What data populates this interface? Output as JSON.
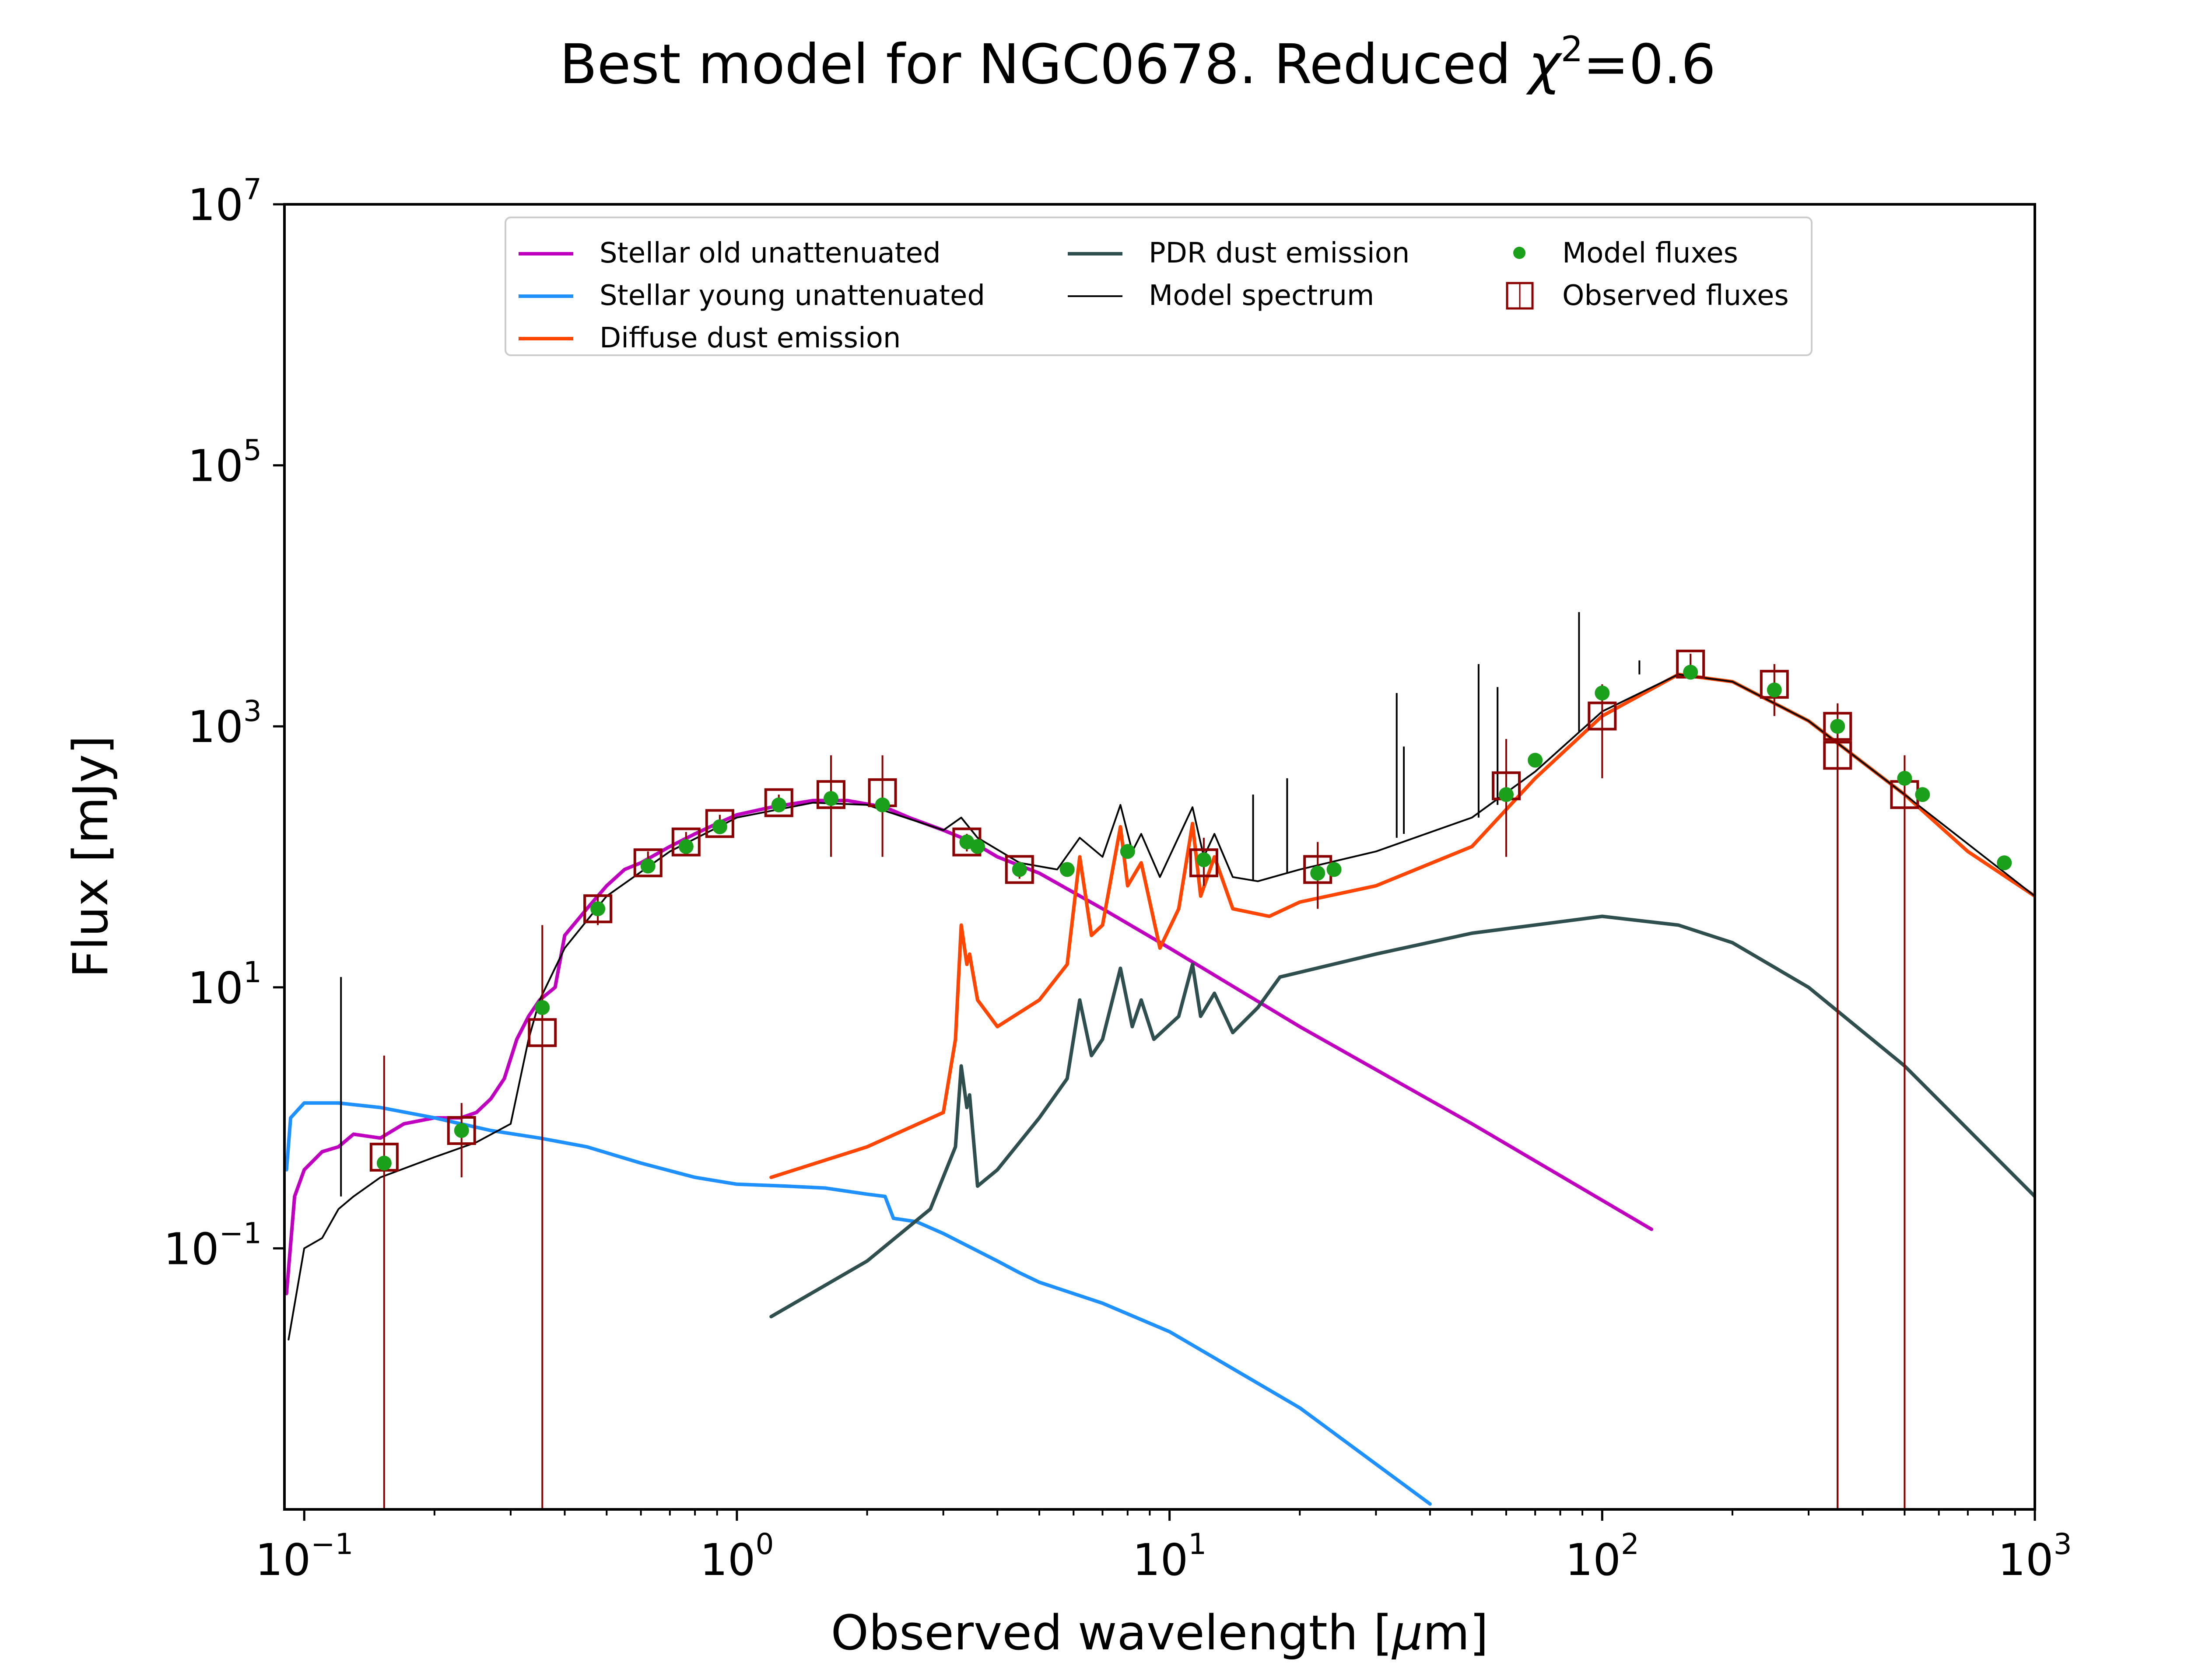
{
  "chart_data": {
    "type": "line",
    "title": "Best model for NGC0678. Reduced χ²=0.6",
    "title_main": "Best model for NGC0678. Reduced ",
    "title_chi": "χ",
    "title_sup": "2",
    "title_tail": "=0.6",
    "xlabel": "Observed wavelength [μm]",
    "xlabel_pre": "Observed wavelength [",
    "xlabel_mu": "μ",
    "xlabel_post": "m]",
    "ylabel": "Flux [mJy]",
    "x_scale": "log",
    "y_scale": "log",
    "xlim": [
      0.09,
      1000
    ],
    "ylim": [
      0.001,
      10000000
    ],
    "x_ticks": [
      {
        "value": 0.1,
        "base": "10",
        "exp": "−1"
      },
      {
        "value": 1,
        "base": "10",
        "exp": "0"
      },
      {
        "value": 10,
        "base": "10",
        "exp": "1"
      },
      {
        "value": 100,
        "base": "10",
        "exp": "2"
      },
      {
        "value": 1000,
        "base": "10",
        "exp": "3"
      }
    ],
    "y_ticks": [
      {
        "value": 0.1,
        "base": "10",
        "exp": "−1"
      },
      {
        "value": 10,
        "base": "10",
        "exp": "1"
      },
      {
        "value": 1000,
        "base": "10",
        "exp": "3"
      },
      {
        "value": 100000,
        "base": "10",
        "exp": "5"
      },
      {
        "value": 10000000,
        "base": "10",
        "exp": "7"
      }
    ],
    "grid": false,
    "legend_position": "upper center",
    "legend": [
      {
        "label": "Stellar old unattenuated",
        "color": "#bf00bf",
        "kind": "line"
      },
      {
        "label": "Stellar young unattenuated",
        "color": "#1e90ff",
        "kind": "line"
      },
      {
        "label": "Diffuse dust emission",
        "color": "#ff4500",
        "kind": "line"
      },
      {
        "label": "PDR dust emission",
        "color": "#2f4f4f",
        "kind": "line"
      },
      {
        "label": "Model spectrum",
        "color": "#000000",
        "kind": "thinline"
      },
      {
        "label": "Model fluxes",
        "color": "#1aa01a",
        "kind": "dot"
      },
      {
        "label": "Observed fluxes",
        "color": "#8b0000",
        "kind": "square"
      }
    ],
    "series": [
      {
        "name": "Stellar old unattenuated",
        "color": "#bf00bf",
        "points": [
          [
            0.091,
            0.045
          ],
          [
            0.095,
            0.25
          ],
          [
            0.1,
            0.4
          ],
          [
            0.11,
            0.55
          ],
          [
            0.12,
            0.6
          ],
          [
            0.13,
            0.75
          ],
          [
            0.15,
            0.7
          ],
          [
            0.17,
            0.9
          ],
          [
            0.2,
            1.0
          ],
          [
            0.23,
            1.0
          ],
          [
            0.25,
            1.1
          ],
          [
            0.27,
            1.4
          ],
          [
            0.29,
            2.0
          ],
          [
            0.31,
            4.0
          ],
          [
            0.33,
            6.0
          ],
          [
            0.35,
            8.0
          ],
          [
            0.38,
            10.0
          ],
          [
            0.4,
            25.0
          ],
          [
            0.45,
            40.0
          ],
          [
            0.5,
            60.0
          ],
          [
            0.55,
            80.0
          ],
          [
            0.6,
            90.0
          ],
          [
            0.7,
            120.0
          ],
          [
            0.8,
            150.0
          ],
          [
            0.9,
            180.0
          ],
          [
            1.0,
            210.0
          ],
          [
            1.2,
            240.0
          ],
          [
            1.5,
            270.0
          ],
          [
            1.8,
            270.0
          ],
          [
            2.2,
            240.0
          ],
          [
            2.5,
            200.0
          ],
          [
            3.0,
            160.0
          ],
          [
            3.5,
            130.0
          ],
          [
            4.0,
            100.0
          ],
          [
            5.0,
            75.0
          ],
          [
            7.0,
            40.0
          ],
          [
            10.0,
            20.0
          ],
          [
            20.0,
            5.0
          ],
          [
            50.0,
            0.9
          ],
          [
            130.0,
            0.14
          ]
        ]
      },
      {
        "name": "Stellar young unattenuated",
        "color": "#1e90ff",
        "points": [
          [
            0.091,
            0.4
          ],
          [
            0.093,
            1.0
          ],
          [
            0.1,
            1.3
          ],
          [
            0.12,
            1.3
          ],
          [
            0.15,
            1.2
          ],
          [
            0.2,
            1.0
          ],
          [
            0.23,
            0.9
          ],
          [
            0.27,
            0.8
          ],
          [
            0.35,
            0.7
          ],
          [
            0.45,
            0.6
          ],
          [
            0.6,
            0.45
          ],
          [
            0.8,
            0.35
          ],
          [
            1.0,
            0.31
          ],
          [
            1.3,
            0.3
          ],
          [
            1.6,
            0.29
          ],
          [
            2.0,
            0.26
          ],
          [
            2.2,
            0.25
          ],
          [
            2.3,
            0.17
          ],
          [
            2.6,
            0.16
          ],
          [
            3.0,
            0.13
          ],
          [
            4.0,
            0.08
          ],
          [
            4.5,
            0.065
          ],
          [
            5.0,
            0.055
          ],
          [
            7.0,
            0.038
          ],
          [
            10.0,
            0.023
          ],
          [
            20.0,
            0.006
          ],
          [
            40.0,
            0.0011
          ]
        ]
      },
      {
        "name": "Diffuse dust emission",
        "color": "#ff4500",
        "points": [
          [
            1.2,
            0.35
          ],
          [
            2.0,
            0.6
          ],
          [
            3.0,
            1.1
          ],
          [
            3.2,
            4.0
          ],
          [
            3.3,
            30.0
          ],
          [
            3.4,
            15.0
          ],
          [
            3.45,
            18.0
          ],
          [
            3.6,
            8.0
          ],
          [
            4.0,
            5.0
          ],
          [
            5.0,
            8.0
          ],
          [
            5.8,
            15.0
          ],
          [
            6.2,
            100.0
          ],
          [
            6.6,
            25.0
          ],
          [
            7.0,
            30.0
          ],
          [
            7.7,
            170.0
          ],
          [
            8.0,
            60.0
          ],
          [
            8.6,
            90.0
          ],
          [
            9.5,
            20.0
          ],
          [
            10.5,
            40.0
          ],
          [
            11.3,
            180.0
          ],
          [
            11.8,
            50.0
          ],
          [
            12.7,
            100.0
          ],
          [
            14.0,
            40.0
          ],
          [
            17.0,
            35.0
          ],
          [
            20.0,
            45.0
          ],
          [
            30.0,
            60.0
          ],
          [
            50.0,
            120.0
          ],
          [
            70.0,
            400.0
          ],
          [
            100.0,
            1200.0
          ],
          [
            150.0,
            2500.0
          ],
          [
            200.0,
            2200.0
          ],
          [
            300.0,
            1100.0
          ],
          [
            500.0,
            300.0
          ],
          [
            700.0,
            110.0
          ],
          [
            1000.0,
            50.0
          ]
        ]
      },
      {
        "name": "PDR dust emission",
        "color": "#2f4f4f",
        "points": [
          [
            1.2,
            0.03
          ],
          [
            2.0,
            0.08
          ],
          [
            2.8,
            0.2
          ],
          [
            3.2,
            0.6
          ],
          [
            3.3,
            2.5
          ],
          [
            3.4,
            1.2
          ],
          [
            3.45,
            1.5
          ],
          [
            3.6,
            0.3
          ],
          [
            4.0,
            0.4
          ],
          [
            5.0,
            1.0
          ],
          [
            5.8,
            2.0
          ],
          [
            6.2,
            8.0
          ],
          [
            6.6,
            3.0
          ],
          [
            7.0,
            4.0
          ],
          [
            7.7,
            14.0
          ],
          [
            8.2,
            5.0
          ],
          [
            8.6,
            8.0
          ],
          [
            9.2,
            4.0
          ],
          [
            10.5,
            6.0
          ],
          [
            11.3,
            15.0
          ],
          [
            11.8,
            6.0
          ],
          [
            12.7,
            9.0
          ],
          [
            14.0,
            4.5
          ],
          [
            16.0,
            7.0
          ],
          [
            18.0,
            12.0
          ],
          [
            30.0,
            18.0
          ],
          [
            50.0,
            26.0
          ],
          [
            100.0,
            35.0
          ],
          [
            150.0,
            30.0
          ],
          [
            200.0,
            22.0
          ],
          [
            300.0,
            10.0
          ],
          [
            500.0,
            2.5
          ],
          [
            1000.0,
            0.25
          ]
        ]
      },
      {
        "name": "Model spectrum",
        "color": "#000000",
        "points": [
          [
            0.092,
            0.02
          ],
          [
            0.1,
            0.1
          ],
          [
            0.11,
            0.12
          ],
          [
            0.12,
            0.2
          ],
          [
            0.13,
            0.25
          ],
          [
            0.15,
            0.35
          ],
          [
            0.2,
            0.5
          ],
          [
            0.25,
            0.65
          ],
          [
            0.3,
            0.9
          ],
          [
            0.33,
            4.0
          ],
          [
            0.35,
            8.0
          ],
          [
            0.4,
            20.0
          ],
          [
            0.5,
            50.0
          ],
          [
            0.7,
            110.0
          ],
          [
            1.0,
            200.0
          ],
          [
            1.5,
            260.0
          ],
          [
            2.0,
            250.0
          ],
          [
            3.0,
            160.0
          ],
          [
            3.3,
            200.0
          ],
          [
            3.6,
            140.0
          ],
          [
            4.5,
            90.0
          ],
          [
            5.5,
            80.0
          ],
          [
            6.2,
            140.0
          ],
          [
            7.0,
            100.0
          ],
          [
            7.7,
            250.0
          ],
          [
            8.2,
            110.0
          ],
          [
            8.6,
            150.0
          ],
          [
            9.5,
            70.0
          ],
          [
            11.3,
            240.0
          ],
          [
            12.0,
            100.0
          ],
          [
            12.7,
            150.0
          ],
          [
            14.0,
            70.0
          ],
          [
            16.0,
            65.0
          ],
          [
            20.0,
            80.0
          ],
          [
            30.0,
            110.0
          ],
          [
            50.0,
            200.0
          ],
          [
            70.0,
            450.0
          ],
          [
            100.0,
            1300.0
          ],
          [
            150.0,
            2500.0
          ],
          [
            200.0,
            2200.0
          ],
          [
            300.0,
            1100.0
          ],
          [
            500.0,
            300.0
          ],
          [
            1000.0,
            50.0
          ]
        ]
      }
    ],
    "emission_lines": [
      [
        0.1216,
        0.25,
        12.0
      ],
      [
        15.6,
        65.0,
        300.0
      ],
      [
        18.7,
        75.0,
        400.0
      ],
      [
        33.5,
        140.0,
        1800.0
      ],
      [
        34.8,
        150.0,
        700.0
      ],
      [
        51.8,
        200.0,
        3000.0
      ],
      [
        57.3,
        250.0,
        2000.0
      ],
      [
        88.4,
        900.0,
        7500.0
      ],
      [
        121.9,
        2500.0,
        3200.0
      ]
    ],
    "model_fluxes": [
      [
        0.153,
        0.45
      ],
      [
        0.231,
        0.8
      ],
      [
        0.355,
        7.0
      ],
      [
        0.477,
        40.0
      ],
      [
        0.623,
        85.0
      ],
      [
        0.763,
        120.0
      ],
      [
        0.913,
        170.0
      ],
      [
        1.25,
        250.0
      ],
      [
        1.65,
        280.0
      ],
      [
        2.17,
        250.0
      ],
      [
        3.4,
        130.0
      ],
      [
        3.6,
        120.0
      ],
      [
        4.5,
        80.0
      ],
      [
        5.8,
        80.0
      ],
      [
        8.0,
        110.0
      ],
      [
        12.0,
        95.0
      ],
      [
        22.0,
        75.0
      ],
      [
        24.0,
        80.0
      ],
      [
        60.0,
        300.0
      ],
      [
        70.0,
        550.0
      ],
      [
        100.0,
        1800.0
      ],
      [
        160.0,
        2600.0
      ],
      [
        250.0,
        1900.0
      ],
      [
        350.0,
        1000.0
      ],
      [
        500.0,
        400.0
      ],
      [
        550.0,
        300.0
      ],
      [
        850.0,
        90.0
      ]
    ],
    "observed_fluxes": [
      [
        0.153,
        0.5,
        0.001,
        3.0
      ],
      [
        0.231,
        0.8,
        0.35,
        1.3
      ],
      [
        0.355,
        4.5,
        0.001,
        30.0
      ],
      [
        0.477,
        40.0,
        30.0,
        50.0
      ],
      [
        0.623,
        90.0,
        75.0,
        110.0
      ],
      [
        0.763,
        130.0,
        110.0,
        155.0
      ],
      [
        0.913,
        180.0,
        150.0,
        210.0
      ],
      [
        1.25,
        260.0,
        220.0,
        300.0
      ],
      [
        1.65,
        300.0,
        100.0,
        600.0
      ],
      [
        2.17,
        310.0,
        100.0,
        600.0
      ],
      [
        3.4,
        130.0,
        110.0,
        150.0
      ],
      [
        4.5,
        80.0,
        68.0,
        92.0
      ],
      [
        12.0,
        90.0,
        60.0,
        140.0
      ],
      [
        22.0,
        80.0,
        40.0,
        130.0
      ],
      [
        60.0,
        350.0,
        100.0,
        800.0
      ],
      [
        100.0,
        1200.0,
        400.0,
        2100.0
      ],
      [
        160.0,
        3000.0,
        2400.0,
        3600.0
      ],
      [
        250.0,
        2100.0,
        1200.0,
        3000.0
      ],
      [
        350.0,
        1000.0,
        0.001,
        1500.0
      ],
      [
        350.0,
        600.0,
        0.001,
        900.0
      ],
      [
        500.0,
        300.0,
        0.001,
        600.0
      ]
    ]
  }
}
